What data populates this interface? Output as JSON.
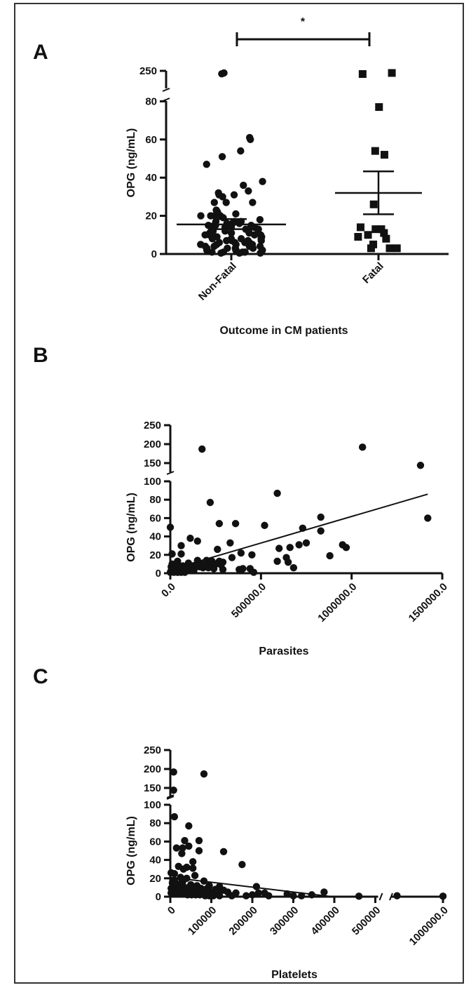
{
  "figure": {
    "colors": {
      "ink": "#111111",
      "frame": "#333333",
      "background": "#ffffff"
    }
  },
  "chart_data": [
    {
      "panel": "A",
      "type": "scatter",
      "subtype": "categorical-dot-plot",
      "xlabel": "Outcome in CM patients",
      "ylabel": "OPG (ng/mL)",
      "categories": [
        "Non-Fatal",
        "Fatal"
      ],
      "y_axis_break": {
        "lower_range": [
          0,
          80
        ],
        "upper_label": 250
      },
      "y_ticks": [
        "0",
        "20",
        "40",
        "60",
        "80",
        "250"
      ],
      "significance": {
        "label": "*",
        "between": [
          "Non-Fatal",
          "Fatal"
        ]
      },
      "series": [
        {
          "category": "Non-Fatal",
          "marker": "circle",
          "mean": 15.5,
          "sem": [
            13,
            18.3
          ],
          "values": [
            240,
            236,
            61,
            60,
            54,
            51,
            47,
            38,
            36,
            33,
            32,
            31,
            31,
            30,
            27,
            27,
            27,
            23,
            22,
            21,
            20,
            20,
            20,
            20,
            19,
            18,
            17,
            17,
            17,
            16,
            16,
            16,
            15,
            15,
            15,
            15,
            14,
            14,
            14,
            13,
            13,
            13,
            12,
            12,
            12,
            12,
            11,
            11,
            11,
            11,
            10,
            10,
            10,
            10,
            9,
            9,
            9,
            9,
            8,
            8,
            8,
            8,
            7,
            7,
            7,
            7,
            6,
            6,
            6,
            6,
            5,
            5,
            5,
            5,
            4,
            4,
            4,
            4,
            3,
            3,
            3,
            3,
            2,
            2,
            2,
            2,
            1,
            1,
            1,
            1,
            1,
            0.5,
            0.5,
            0.5
          ]
        },
        {
          "category": "Fatal",
          "marker": "square",
          "mean": 32,
          "sem": [
            20.8,
            43.3
          ],
          "values": [
            240,
            235,
            77,
            54,
            52,
            26,
            13,
            11,
            10,
            9,
            8,
            5,
            3,
            3,
            3,
            13,
            14
          ]
        }
      ]
    },
    {
      "panel": "B",
      "type": "scatter",
      "xlabel": "Parasites",
      "ylabel": "OPG (ng/mL)",
      "xlim": [
        0,
        1500000
      ],
      "x_ticks": [
        "0.0",
        "500000.0",
        "1000000.0",
        "1500000.0"
      ],
      "y_axis_break": {
        "lower_range": [
          0,
          100
        ],
        "upper_range": [
          125,
          250
        ]
      },
      "y_ticks": [
        "0",
        "20",
        "40",
        "60",
        "80",
        "100",
        "150",
        "200",
        "250"
      ],
      "trendline": {
        "x": [
          0,
          1420000
        ],
        "y": [
          4,
          86
        ]
      },
      "points": [
        [
          1060000,
          192
        ],
        [
          175000,
          187
        ],
        [
          1380000,
          144
        ],
        [
          590000,
          87
        ],
        [
          220000,
          77
        ],
        [
          1420000,
          60
        ],
        [
          830000,
          61
        ],
        [
          270000,
          54
        ],
        [
          360000,
          54
        ],
        [
          520000,
          52
        ],
        [
          0,
          50
        ],
        [
          730000,
          49
        ],
        [
          830000,
          46
        ],
        [
          110000,
          38
        ],
        [
          150000,
          35
        ],
        [
          750000,
          33
        ],
        [
          330000,
          33
        ],
        [
          710000,
          31
        ],
        [
          60000,
          30
        ],
        [
          950000,
          31
        ],
        [
          970000,
          28
        ],
        [
          600000,
          27
        ],
        [
          660000,
          28
        ],
        [
          260000,
          26
        ],
        [
          390000,
          22
        ],
        [
          10000,
          21
        ],
        [
          60000,
          21
        ],
        [
          450000,
          20
        ],
        [
          880000,
          19
        ],
        [
          640000,
          17
        ],
        [
          340000,
          17
        ],
        [
          590000,
          13
        ],
        [
          650000,
          12
        ],
        [
          150000,
          14
        ],
        [
          200000,
          14
        ],
        [
          230000,
          13
        ],
        [
          270000,
          13
        ],
        [
          290000,
          12
        ],
        [
          40000,
          13
        ],
        [
          100000,
          11
        ],
        [
          170000,
          10
        ],
        [
          190000,
          9
        ],
        [
          220000,
          9
        ],
        [
          250000,
          10
        ],
        [
          280000,
          9
        ],
        [
          10000,
          10
        ],
        [
          30000,
          9
        ],
        [
          50000,
          8
        ],
        [
          70000,
          8
        ],
        [
          90000,
          7
        ],
        [
          120000,
          7
        ],
        [
          140000,
          8
        ],
        [
          160000,
          7
        ],
        [
          180000,
          6
        ],
        [
          210000,
          6
        ],
        [
          240000,
          5
        ],
        [
          5000,
          7
        ],
        [
          20000,
          6
        ],
        [
          40000,
          5
        ],
        [
          60000,
          5
        ],
        [
          80000,
          4
        ],
        [
          100000,
          4
        ],
        [
          130000,
          3
        ],
        [
          290000,
          4
        ],
        [
          400000,
          5
        ],
        [
          440000,
          5
        ],
        [
          680000,
          6
        ],
        [
          380000,
          4
        ],
        [
          5000,
          3
        ],
        [
          15000,
          3
        ],
        [
          30000,
          2
        ],
        [
          50000,
          2
        ],
        [
          70000,
          2
        ],
        [
          0,
          1
        ],
        [
          20000,
          1
        ],
        [
          40000,
          1
        ],
        [
          60000,
          1
        ],
        [
          80000,
          1
        ],
        [
          460000,
          1
        ]
      ]
    },
    {
      "panel": "C",
      "type": "scatter",
      "xlabel": "Platelets",
      "ylabel": "OPG (ng/mL)",
      "x_axis_break": {
        "lower_range": [
          0,
          500000
        ],
        "upper_label": 1000000
      },
      "x_ticks": [
        "0",
        "100000",
        "200000",
        "300000",
        "400000",
        "500000",
        "1000000.0"
      ],
      "y_axis_break": {
        "lower_range": [
          0,
          100
        ],
        "upper_range": [
          125,
          250
        ]
      },
      "y_ticks": [
        "0",
        "20",
        "40",
        "60",
        "80",
        "100",
        "150",
        "200",
        "250"
      ],
      "trendline": {
        "x": [
          0,
          395000
        ],
        "y": [
          21,
          0
        ]
      },
      "points": [
        [
          8000,
          192
        ],
        [
          82000,
          187
        ],
        [
          8000,
          144
        ],
        [
          10000,
          87
        ],
        [
          45000,
          77
        ],
        [
          35000,
          61
        ],
        [
          70000,
          61
        ],
        [
          45000,
          55
        ],
        [
          30000,
          53
        ],
        [
          15000,
          53
        ],
        [
          70000,
          50
        ],
        [
          130000,
          49
        ],
        [
          28000,
          47
        ],
        [
          55000,
          38
        ],
        [
          175000,
          35
        ],
        [
          20000,
          33
        ],
        [
          40000,
          32
        ],
        [
          55000,
          31
        ],
        [
          32000,
          30
        ],
        [
          2000,
          26
        ],
        [
          10000,
          25
        ],
        [
          60000,
          23
        ],
        [
          25000,
          21
        ],
        [
          40000,
          20
        ],
        [
          82000,
          17
        ],
        [
          10000,
          18
        ],
        [
          30000,
          16
        ],
        [
          5000,
          15
        ],
        [
          15000,
          14
        ],
        [
          25000,
          14
        ],
        [
          50000,
          13
        ],
        [
          65000,
          12
        ],
        [
          95000,
          12
        ],
        [
          120000,
          11
        ],
        [
          210000,
          11
        ],
        [
          35000,
          10
        ],
        [
          45000,
          10
        ],
        [
          55000,
          10
        ],
        [
          75000,
          9
        ],
        [
          90000,
          9
        ],
        [
          110000,
          8
        ],
        [
          130000,
          7
        ],
        [
          2000,
          9
        ],
        [
          12000,
          8
        ],
        [
          22000,
          8
        ],
        [
          32000,
          7
        ],
        [
          42000,
          7
        ],
        [
          52000,
          6
        ],
        [
          62000,
          6
        ],
        [
          72000,
          6
        ],
        [
          85000,
          5
        ],
        [
          100000,
          5
        ],
        [
          115000,
          5
        ],
        [
          140000,
          5
        ],
        [
          160000,
          4
        ],
        [
          215000,
          4
        ],
        [
          230000,
          4
        ],
        [
          285000,
          3
        ],
        [
          375000,
          5
        ],
        [
          2000,
          4
        ],
        [
          12000,
          3
        ],
        [
          22000,
          3
        ],
        [
          32000,
          3
        ],
        [
          42000,
          2
        ],
        [
          52000,
          2
        ],
        [
          62000,
          2
        ],
        [
          72000,
          2
        ],
        [
          85000,
          1
        ],
        [
          95000,
          1
        ],
        [
          105000,
          1
        ],
        [
          120000,
          1
        ],
        [
          150000,
          1
        ],
        [
          185000,
          1
        ],
        [
          200000,
          2
        ],
        [
          240000,
          1
        ],
        [
          300000,
          1
        ],
        [
          320000,
          1
        ],
        [
          345000,
          2
        ],
        [
          460000,
          0.5
        ],
        [
          580000,
          1
        ],
        [
          1000000,
          0.5
        ]
      ]
    }
  ]
}
